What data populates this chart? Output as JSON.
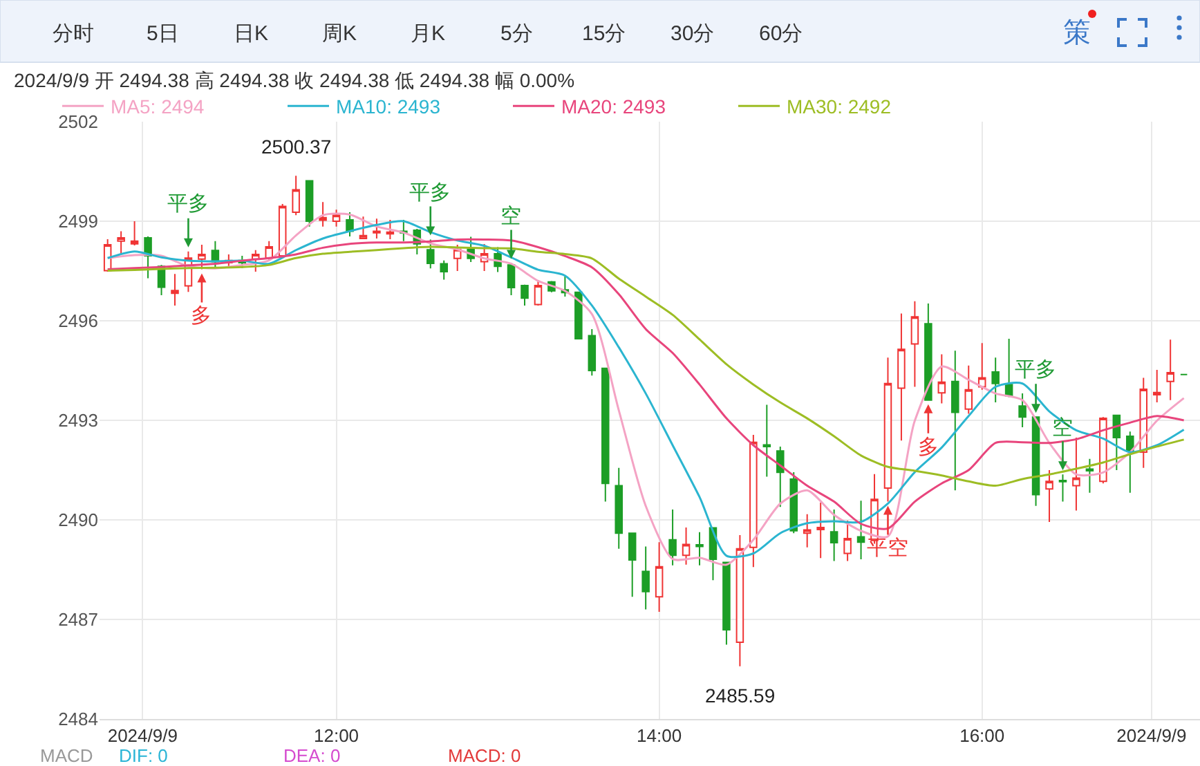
{
  "chart_data": {
    "type": "candlestick",
    "subtitle": "2024/9/9 开 2494.38 高 2494.38 收 2494.38 低 2494.38 幅 0.00%",
    "x": [
      "2024-09-09T10:35",
      "2024-09-09T10:40",
      "2024-09-09T10:45",
      "2024-09-09T10:50",
      "2024-09-09T10:55",
      "2024-09-09T11:00",
      "2024-09-09T11:05",
      "2024-09-09T11:10",
      "2024-09-09T11:15",
      "2024-09-09T11:20",
      "2024-09-09T11:25",
      "2024-09-09T11:30",
      "2024-09-09T11:35",
      "2024-09-09T11:40",
      "2024-09-09T11:45",
      "2024-09-09T11:50",
      "2024-09-09T11:55",
      "2024-09-09T12:00",
      "2024-09-09T12:05",
      "2024-09-09T12:10",
      "2024-09-09T12:15",
      "2024-09-09T12:20",
      "2024-09-09T12:25",
      "2024-09-09T12:30",
      "2024-09-09T12:35",
      "2024-09-09T12:40",
      "2024-09-09T12:45",
      "2024-09-09T12:50",
      "2024-09-09T12:55",
      "2024-09-09T13:00",
      "2024-09-09T13:05",
      "2024-09-09T13:10",
      "2024-09-09T13:15",
      "2024-09-09T13:20",
      "2024-09-09T13:25",
      "2024-09-09T13:30",
      "2024-09-09T13:35",
      "2024-09-09T13:40",
      "2024-09-09T13:45",
      "2024-09-09T13:50",
      "2024-09-09T13:55",
      "2024-09-09T14:00",
      "2024-09-09T14:05",
      "2024-09-09T14:10",
      "2024-09-09T14:15",
      "2024-09-09T14:20",
      "2024-09-09T14:25",
      "2024-09-09T14:30",
      "2024-09-09T14:35",
      "2024-09-09T14:40",
      "2024-09-09T14:45",
      "2024-09-09T14:50",
      "2024-09-09T14:55",
      "2024-09-09T15:00",
      "2024-09-09T15:05",
      "2024-09-09T15:10",
      "2024-09-09T15:15",
      "2024-09-09T15:20",
      "2024-09-09T15:25",
      "2024-09-09T15:30",
      "2024-09-09T15:35",
      "2024-09-09T15:40",
      "2024-09-09T15:45",
      "2024-09-09T15:50",
      "2024-09-09T15:55",
      "2024-09-09T16:00",
      "2024-09-09T16:05",
      "2024-09-09T16:10",
      "2024-09-09T16:15",
      "2024-09-09T16:20",
      "2024-09-09T16:25",
      "2024-09-09T16:30",
      "2024-09-09T16:35",
      "2024-09-09T16:40",
      "2024-09-09T16:45",
      "2024-09-09T16:50",
      "2024-09-09T16:55",
      "2024-09-09T17:00",
      "2024-09-09T17:05",
      "2024-09-09T17:10",
      "2024-09-09T17:15"
    ],
    "ohlc": [
      [
        2497.51,
        2498.46,
        2497.48,
        2498.29
      ],
      [
        2498.4,
        2498.7,
        2498.02,
        2498.5
      ],
      [
        2498.32,
        2499.0,
        2498.27,
        2498.4
      ],
      [
        2498.5,
        2498.54,
        2497.28,
        2497.96
      ],
      [
        2497.64,
        2497.68,
        2496.77,
        2497.01
      ],
      [
        2496.83,
        2497.41,
        2496.46,
        2496.91
      ],
      [
        2497.05,
        2498.09,
        2496.87,
        2497.89
      ],
      [
        2497.86,
        2498.29,
        2497.55,
        2498.0
      ],
      [
        2498.12,
        2498.4,
        2497.62,
        2497.78
      ],
      [
        2497.75,
        2498.0,
        2497.59,
        2497.82
      ],
      [
        2497.82,
        2497.96,
        2497.59,
        2497.75
      ],
      [
        2497.86,
        2498.13,
        2497.48,
        2498.0
      ],
      [
        2497.89,
        2498.4,
        2497.82,
        2498.23
      ],
      [
        2497.96,
        2499.52,
        2497.91,
        2499.45
      ],
      [
        2499.27,
        2500.37,
        2499.18,
        2499.95
      ],
      [
        2500.22,
        2500.22,
        2498.84,
        2499.0
      ],
      [
        2499.03,
        2499.58,
        2498.84,
        2499.11
      ],
      [
        2499.0,
        2499.35,
        2498.84,
        2499.18
      ],
      [
        2499.04,
        2499.27,
        2498.54,
        2498.7
      ],
      [
        2498.48,
        2499.14,
        2498.48,
        2498.57
      ],
      [
        2498.65,
        2499.08,
        2498.48,
        2498.7
      ],
      [
        2498.62,
        2499.04,
        2498.46,
        2498.67
      ],
      [
        2498.7,
        2499.04,
        2498.4,
        2498.65
      ],
      [
        2498.73,
        2498.77,
        2498.0,
        2498.32
      ],
      [
        2498.14,
        2498.45,
        2497.58,
        2497.73
      ],
      [
        2497.72,
        2497.82,
        2497.24,
        2497.48
      ],
      [
        2497.88,
        2498.29,
        2497.5,
        2498.15
      ],
      [
        2498.15,
        2498.53,
        2497.77,
        2497.88
      ],
      [
        2497.78,
        2498.31,
        2497.5,
        2498.02
      ],
      [
        2498.02,
        2498.22,
        2497.47,
        2497.64
      ],
      [
        2497.68,
        2497.74,
        2496.77,
        2497.0
      ],
      [
        2497.06,
        2497.09,
        2496.46,
        2496.68
      ],
      [
        2496.49,
        2497.23,
        2496.46,
        2497.06
      ],
      [
        2497.17,
        2497.2,
        2496.86,
        2496.9
      ],
      [
        2496.93,
        2497.34,
        2496.73,
        2496.85
      ],
      [
        2496.86,
        2496.86,
        2495.46,
        2495.46
      ],
      [
        2495.55,
        2495.75,
        2494.35,
        2494.5
      ],
      [
        2494.57,
        2494.57,
        2490.55,
        2491.1
      ],
      [
        2491.03,
        2491.57,
        2489.13,
        2489.6
      ],
      [
        2489.6,
        2489.6,
        2487.68,
        2488.79
      ],
      [
        2488.45,
        2489.2,
        2487.3,
        2487.84
      ],
      [
        2487.68,
        2489.33,
        2487.23,
        2488.59
      ],
      [
        2489.4,
        2490.31,
        2488.63,
        2488.93
      ],
      [
        2488.93,
        2489.77,
        2488.65,
        2489.26
      ],
      [
        2489.25,
        2489.63,
        2488.63,
        2489.2
      ],
      [
        2489.76,
        2489.76,
        2488.18,
        2488.81
      ],
      [
        2488.72,
        2488.72,
        2486.24,
        2486.69
      ],
      [
        2486.31,
        2489.54,
        2485.59,
        2489.13
      ],
      [
        2489.17,
        2492.56,
        2488.58,
        2492.34
      ],
      [
        2492.26,
        2493.47,
        2491.3,
        2492.21
      ],
      [
        2492.08,
        2492.21,
        2490.39,
        2491.43
      ],
      [
        2491.23,
        2491.44,
        2489.6,
        2489.67
      ],
      [
        2489.6,
        2490.17,
        2489.17,
        2489.7
      ],
      [
        2489.71,
        2490.52,
        2488.85,
        2489.77
      ],
      [
        2489.64,
        2490.31,
        2488.76,
        2489.31
      ],
      [
        2488.99,
        2489.98,
        2488.76,
        2489.44
      ],
      [
        2489.49,
        2490.58,
        2488.81,
        2489.33
      ],
      [
        2489.38,
        2491.38,
        2489.28,
        2490.62
      ],
      [
        2490.96,
        2494.89,
        2490.55,
        2494.11
      ],
      [
        2493.97,
        2496.22,
        2492.39,
        2495.14
      ],
      [
        2495.3,
        2496.59,
        2494.01,
        2496.12
      ],
      [
        2495.91,
        2496.52,
        2493.61,
        2493.61
      ],
      [
        2493.83,
        2494.99,
        2493.51,
        2494.15
      ],
      [
        2494.17,
        2495.1,
        2490.89,
        2493.24
      ],
      [
        2493.34,
        2494.65,
        2493.2,
        2493.92
      ],
      [
        2494.01,
        2495.33,
        2493.92,
        2494.28
      ],
      [
        2494.46,
        2494.89,
        2493.54,
        2494.11
      ],
      [
        2494.08,
        2495.46,
        2493.7,
        2493.74
      ],
      [
        2493.43,
        2493.81,
        2492.79,
        2493.1
      ],
      [
        2493.1,
        2493.1,
        2490.42,
        2490.76
      ],
      [
        2490.93,
        2491.5,
        2489.94,
        2491.16
      ],
      [
        2491.19,
        2491.37,
        2490.55,
        2491.15
      ],
      [
        2491.03,
        2492.48,
        2490.28,
        2491.26
      ],
      [
        2491.53,
        2491.84,
        2490.82,
        2491.48
      ],
      [
        2491.16,
        2493.1,
        2491.1,
        2493.06
      ],
      [
        2493.15,
        2493.15,
        2491.5,
        2492.48
      ],
      [
        2492.52,
        2492.66,
        2490.82,
        2492.07
      ],
      [
        2492.04,
        2494.28,
        2491.57,
        2493.94
      ],
      [
        2493.77,
        2494.52,
        2493.54,
        2493.84
      ],
      [
        2494.17,
        2495.43,
        2493.61,
        2494.44
      ],
      [
        2494.38,
        2494.38,
        2494.38,
        2494.38
      ]
    ],
    "series": [
      {
        "name": "MA5: 2494",
        "type": "line",
        "color": "#f4a3c4",
        "x": [
          "2024-09-09T10:35",
          "2024-09-09T10:45",
          "2024-09-09T10:55",
          "2024-09-09T11:05",
          "2024-09-09T11:15",
          "2024-09-09T11:25",
          "2024-09-09T11:35",
          "2024-09-09T11:45",
          "2024-09-09T11:55",
          "2024-09-09T12:05",
          "2024-09-09T12:15",
          "2024-09-09T12:25",
          "2024-09-09T12:35",
          "2024-09-09T12:45",
          "2024-09-09T12:55",
          "2024-09-09T13:05",
          "2024-09-09T13:15",
          "2024-09-09T13:25",
          "2024-09-09T13:35",
          "2024-09-09T13:45",
          "2024-09-09T13:55",
          "2024-09-09T14:05",
          "2024-09-09T14:15",
          "2024-09-09T14:25",
          "2024-09-09T14:35",
          "2024-09-09T14:45",
          "2024-09-09T14:55",
          "2024-09-09T15:05",
          "2024-09-09T15:15",
          "2024-09-09T15:25",
          "2024-09-09T15:35",
          "2024-09-09T15:45",
          "2024-09-09T15:55",
          "2024-09-09T16:05",
          "2024-09-09T16:15",
          "2024-09-09T16:25",
          "2024-09-09T16:35",
          "2024-09-09T16:45",
          "2024-09-09T16:55",
          "2024-09-09T17:05",
          "2024-09-09T17:15"
        ],
        "values": [
          2497.89,
          2497.98,
          2497.96,
          2497.64,
          2497.58,
          2497.68,
          2497.82,
          2498.57,
          2499.18,
          2499.2,
          2498.84,
          2498.66,
          2498.33,
          2498.15,
          2497.88,
          2497.72,
          2497.2,
          2496.9,
          2496.2,
          2493.3,
          2490.42,
          2488.82,
          2488.86,
          2488.65,
          2489.4,
          2490.49,
          2490.89,
          2490.15,
          2489.67,
          2489.5,
          2492.99,
          2494.62,
          2494.22,
          2493.81,
          2493.61,
          2492.32,
          2491.37,
          2491.43,
          2492.04,
          2492.99,
          2493.67
        ]
      },
      {
        "name": "MA10: 2493",
        "type": "line",
        "color": "#2bb5d0",
        "x": [
          "2024-09-09T10:35",
          "2024-09-09T10:45",
          "2024-09-09T10:55",
          "2024-09-09T11:05",
          "2024-09-09T11:15",
          "2024-09-09T11:25",
          "2024-09-09T11:35",
          "2024-09-09T11:45",
          "2024-09-09T11:55",
          "2024-09-09T12:05",
          "2024-09-09T12:15",
          "2024-09-09T12:25",
          "2024-09-09T12:35",
          "2024-09-09T12:45",
          "2024-09-09T12:55",
          "2024-09-09T13:05",
          "2024-09-09T13:15",
          "2024-09-09T13:25",
          "2024-09-09T13:35",
          "2024-09-09T13:45",
          "2024-09-09T13:55",
          "2024-09-09T14:05",
          "2024-09-09T14:15",
          "2024-09-09T14:25",
          "2024-09-09T14:35",
          "2024-09-09T14:45",
          "2024-09-09T14:55",
          "2024-09-09T15:05",
          "2024-09-09T15:15",
          "2024-09-09T15:25",
          "2024-09-09T15:35",
          "2024-09-09T15:45",
          "2024-09-09T15:55",
          "2024-09-09T16:05",
          "2024-09-09T16:15",
          "2024-09-09T16:25",
          "2024-09-09T16:35",
          "2024-09-09T16:45",
          "2024-09-09T16:55",
          "2024-09-09T17:05",
          "2024-09-09T17:15"
        ],
        "values": [
          2497.89,
          2498.09,
          2497.91,
          2497.81,
          2497.79,
          2497.81,
          2497.72,
          2498.13,
          2498.48,
          2498.7,
          2498.89,
          2499.0,
          2498.67,
          2498.42,
          2498.26,
          2497.91,
          2497.54,
          2497.36,
          2496.46,
          2495.2,
          2493.81,
          2492.25,
          2490.69,
          2488.92,
          2488.99,
          2489.6,
          2489.9,
          2489.96,
          2489.94,
          2490.49,
          2491.44,
          2492.18,
          2493.13,
          2494.01,
          2494.11,
          2493.27,
          2492.7,
          2492.45,
          2492.04,
          2492.25,
          2492.72
        ]
      },
      {
        "name": "MA20: 2493",
        "type": "line",
        "color": "#e8457c",
        "x": [
          "2024-09-09T10:35",
          "2024-09-09T10:45",
          "2024-09-09T10:55",
          "2024-09-09T11:05",
          "2024-09-09T11:15",
          "2024-09-09T11:25",
          "2024-09-09T11:35",
          "2024-09-09T11:45",
          "2024-09-09T11:55",
          "2024-09-09T12:05",
          "2024-09-09T12:15",
          "2024-09-09T12:25",
          "2024-09-09T12:35",
          "2024-09-09T12:45",
          "2024-09-09T12:55",
          "2024-09-09T13:05",
          "2024-09-09T13:15",
          "2024-09-09T13:25",
          "2024-09-09T13:35",
          "2024-09-09T13:45",
          "2024-09-09T13:55",
          "2024-09-09T14:05",
          "2024-09-09T14:15",
          "2024-09-09T14:25",
          "2024-09-09T14:35",
          "2024-09-09T14:45",
          "2024-09-09T14:55",
          "2024-09-09T15:05",
          "2024-09-09T15:15",
          "2024-09-09T15:25",
          "2024-09-09T15:35",
          "2024-09-09T15:45",
          "2024-09-09T15:55",
          "2024-09-09T16:05",
          "2024-09-09T16:15",
          "2024-09-09T16:25",
          "2024-09-09T16:35",
          "2024-09-09T16:45",
          "2024-09-09T16:55",
          "2024-09-09T17:05",
          "2024-09-09T17:15"
        ],
        "values": [
          2497.55,
          2497.59,
          2497.62,
          2497.67,
          2497.72,
          2497.81,
          2497.89,
          2498.0,
          2498.2,
          2498.32,
          2498.36,
          2498.36,
          2498.39,
          2498.45,
          2498.45,
          2498.42,
          2498.22,
          2497.95,
          2497.61,
          2496.8,
          2495.75,
          2495.03,
          2494.08,
          2493.06,
          2492.25,
          2491.64,
          2491.03,
          2490.55,
          2489.88,
          2489.74,
          2490.55,
          2491.1,
          2491.5,
          2492.32,
          2492.34,
          2492.32,
          2492.43,
          2492.7,
          2492.93,
          2493.13,
          2493.0
        ]
      },
      {
        "name": "MA30: 2492",
        "type": "line",
        "color": "#9dbd24",
        "x": [
          "2024-09-09T10:35",
          "2024-09-09T10:45",
          "2024-09-09T10:55",
          "2024-09-09T11:05",
          "2024-09-09T11:15",
          "2024-09-09T11:25",
          "2024-09-09T11:35",
          "2024-09-09T11:45",
          "2024-09-09T11:55",
          "2024-09-09T12:05",
          "2024-09-09T12:15",
          "2024-09-09T12:25",
          "2024-09-09T12:35",
          "2024-09-09T12:45",
          "2024-09-09T12:55",
          "2024-09-09T13:05",
          "2024-09-09T13:15",
          "2024-09-09T13:25",
          "2024-09-09T13:35",
          "2024-09-09T13:45",
          "2024-09-09T13:55",
          "2024-09-09T14:05",
          "2024-09-09T14:15",
          "2024-09-09T14:25",
          "2024-09-09T14:35",
          "2024-09-09T14:45",
          "2024-09-09T14:55",
          "2024-09-09T15:05",
          "2024-09-09T15:15",
          "2024-09-09T15:25",
          "2024-09-09T15:35",
          "2024-09-09T15:45",
          "2024-09-09T15:55",
          "2024-09-09T16:05",
          "2024-09-09T16:15",
          "2024-09-09T16:25",
          "2024-09-09T16:35",
          "2024-09-09T16:45",
          "2024-09-09T16:55",
          "2024-09-09T17:05",
          "2024-09-09T17:15"
        ],
        "values": [
          2497.51,
          2497.53,
          2497.56,
          2497.59,
          2497.6,
          2497.62,
          2497.68,
          2497.89,
          2498.02,
          2498.08,
          2498.13,
          2498.19,
          2498.23,
          2498.21,
          2498.19,
          2498.18,
          2498.08,
          2498.01,
          2497.88,
          2497.27,
          2496.73,
          2496.18,
          2495.44,
          2494.69,
          2494.08,
          2493.54,
          2493.06,
          2492.52,
          2491.94,
          2491.6,
          2491.48,
          2491.34,
          2491.16,
          2491.03,
          2491.23,
          2491.37,
          2491.54,
          2491.73,
          2491.98,
          2492.21,
          2492.42
        ]
      }
    ],
    "xlim": [
      "2024-09-09T10:32",
      "2024-09-09T17:21"
    ],
    "xticks": [
      {
        "value": "2024-09-09T10:48",
        "label": "2024/9/9"
      },
      {
        "value": "2024-09-09T12:00",
        "label": "12:00"
      },
      {
        "value": "2024-09-09T14:00",
        "label": "14:00"
      },
      {
        "value": "2024-09-09T16:00",
        "label": "16:00"
      },
      {
        "value": "2024-09-09T17:03",
        "label": "2024/9/9"
      }
    ],
    "ylim": [
      2484,
      2502
    ],
    "yticks": [
      2484,
      2487,
      2490,
      2493,
      2496,
      2499,
      2502
    ],
    "grid": true,
    "legend": "top left",
    "annotations": [
      "分时",
      "5日",
      "日K",
      "周K",
      "月K",
      "5分",
      "15分",
      "30分",
      "60分",
      "策",
      {
        "text": "平多",
        "x": "2024-09-09T11:05",
        "y": 2498.09
      },
      {
        "text": "多",
        "x": "2024-09-09T11:10",
        "y": 2497.55
      },
      {
        "text": "2500.37",
        "x": "2024-09-09T11:45",
        "y": 2500.37
      },
      {
        "text": "平多",
        "x": "2024-09-09T12:35",
        "y": 2498.45
      },
      {
        "text": "空",
        "x": "2024-09-09T13:05",
        "y": 2497.74
      },
      {
        "text": "2485.59",
        "x": "2024-09-09T14:30",
        "y": 2485.59
      },
      {
        "text": "平空",
        "x": "2024-09-09T15:25",
        "y": 2490.55
      },
      {
        "text": "多",
        "x": "2024-09-09T15:40",
        "y": 2493.61
      },
      {
        "text": "平多",
        "x": "2024-09-09T16:20",
        "y": 2493.1
      },
      {
        "text": "空",
        "x": "2024-09-09T16:30",
        "y": 2491.37
      },
      "MACD",
      "DIF: 0",
      "DEA: 0",
      "MACD: 0"
    ]
  }
}
